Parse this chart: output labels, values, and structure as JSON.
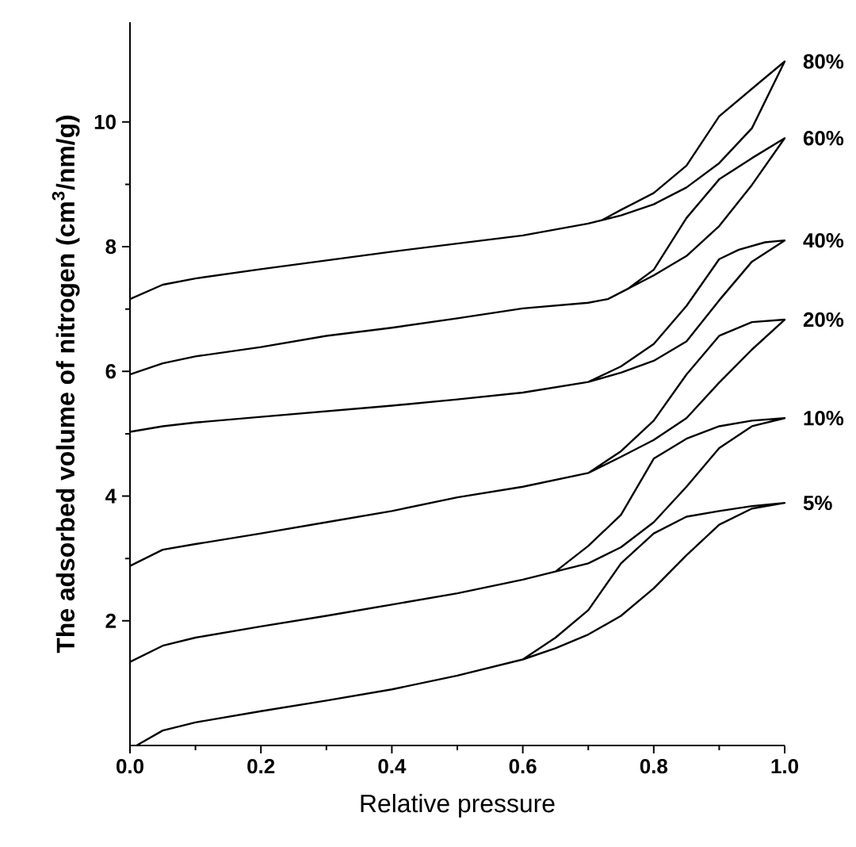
{
  "chart_data": {
    "type": "line",
    "xlabel": "Relative pressure",
    "ylabel": "The adsorbed volume of nitrogen (cm$^{3}$/nm/g)",
    "xlim": [
      0,
      1
    ],
    "ylim": [
      0,
      11.6
    ],
    "xticks": [
      {
        "value": 0,
        "label": "0.0"
      },
      {
        "value": 0.2,
        "label": "0.2"
      },
      {
        "value": 0.4,
        "label": "0.4"
      },
      {
        "value": 0.6,
        "label": "0.6"
      },
      {
        "value": 0.8,
        "label": "0.8"
      },
      {
        "value": 1,
        "label": "1.0"
      }
    ],
    "yticks": [
      2,
      4,
      6,
      8,
      10
    ],
    "marker": "none",
    "line_style": "solid",
    "grid": false,
    "legend": false,
    "series": [
      {
        "name": "80%",
        "color": "#000000",
        "x": [
          0,
          0.05,
          0.1,
          0.2,
          0.3,
          0.4,
          0.5,
          0.6,
          0.7,
          0.75,
          0.8,
          0.85,
          0.9,
          0.95,
          1.0,
          0.96,
          0.9,
          0.85,
          0.8,
          0.75,
          0.72
        ],
        "values": [
          7.16,
          7.39,
          7.49,
          7.64,
          7.78,
          7.92,
          8.05,
          8.18,
          8.37,
          8.5,
          8.68,
          8.95,
          9.34,
          9.9,
          10.97,
          10.62,
          10.09,
          9.3,
          8.86,
          8.59,
          8.42
        ]
      },
      {
        "name": "60%",
        "color": "#000000",
        "x": [
          0,
          0.05,
          0.1,
          0.2,
          0.3,
          0.4,
          0.5,
          0.6,
          0.7,
          0.73,
          0.8,
          0.85,
          0.9,
          0.95,
          1.0,
          0.95,
          0.9,
          0.85,
          0.8,
          0.76,
          0.73
        ],
        "values": [
          5.95,
          6.13,
          6.24,
          6.39,
          6.57,
          6.7,
          6.85,
          7.01,
          7.1,
          7.16,
          7.54,
          7.85,
          8.33,
          8.99,
          9.74,
          9.42,
          9.08,
          8.46,
          7.63,
          7.32,
          7.16
        ]
      },
      {
        "name": "40%",
        "color": "#000000",
        "x": [
          0,
          0.05,
          0.1,
          0.2,
          0.3,
          0.4,
          0.5,
          0.6,
          0.7,
          0.75,
          0.8,
          0.85,
          0.9,
          0.95,
          1.0,
          0.97,
          0.93,
          0.9,
          0.85,
          0.8,
          0.75,
          0.7
        ],
        "values": [
          5.03,
          5.12,
          5.18,
          5.27,
          5.36,
          5.45,
          5.55,
          5.66,
          5.83,
          5.98,
          6.17,
          6.48,
          7.14,
          7.76,
          8.1,
          8.07,
          7.95,
          7.8,
          7.05,
          6.44,
          6.08,
          5.83
        ]
      },
      {
        "name": "20%",
        "color": "#000000",
        "x": [
          0,
          0.05,
          0.1,
          0.2,
          0.3,
          0.4,
          0.5,
          0.6,
          0.7,
          0.75,
          0.8,
          0.85,
          0.9,
          0.95,
          1.0,
          0.95,
          0.9,
          0.85,
          0.8,
          0.75,
          0.7
        ],
        "values": [
          2.88,
          3.14,
          3.23,
          3.4,
          3.58,
          3.76,
          3.98,
          4.15,
          4.37,
          4.63,
          4.9,
          5.25,
          5.82,
          6.35,
          6.83,
          6.79,
          6.57,
          5.95,
          5.21,
          4.72,
          4.37
        ]
      },
      {
        "name": "10%",
        "color": "#000000",
        "x": [
          0,
          0.05,
          0.1,
          0.2,
          0.3,
          0.4,
          0.5,
          0.6,
          0.65,
          0.7,
          0.75,
          0.8,
          0.85,
          0.9,
          0.95,
          1.0,
          0.95,
          0.9,
          0.85,
          0.8,
          0.75,
          0.7,
          0.65
        ],
        "values": [
          1.34,
          1.6,
          1.73,
          1.91,
          2.08,
          2.26,
          2.44,
          2.66,
          2.79,
          2.92,
          3.18,
          3.58,
          4.15,
          4.77,
          5.12,
          5.25,
          5.21,
          5.12,
          4.92,
          4.6,
          3.7,
          3.2,
          2.79
        ]
      },
      {
        "name": "5%",
        "color": "#000000",
        "x": [
          0.01,
          0.05,
          0.1,
          0.2,
          0.3,
          0.4,
          0.5,
          0.6,
          0.65,
          0.7,
          0.75,
          0.8,
          0.85,
          0.9,
          0.95,
          1.0,
          0.95,
          0.9,
          0.85,
          0.8,
          0.75,
          0.7,
          0.65,
          0.6
        ],
        "values": [
          0,
          0.24,
          0.37,
          0.55,
          0.72,
          0.9,
          1.12,
          1.38,
          1.56,
          1.78,
          2.08,
          2.52,
          3.05,
          3.54,
          3.8,
          3.89,
          3.84,
          3.76,
          3.67,
          3.4,
          2.92,
          2.17,
          1.73,
          1.38
        ]
      }
    ]
  }
}
